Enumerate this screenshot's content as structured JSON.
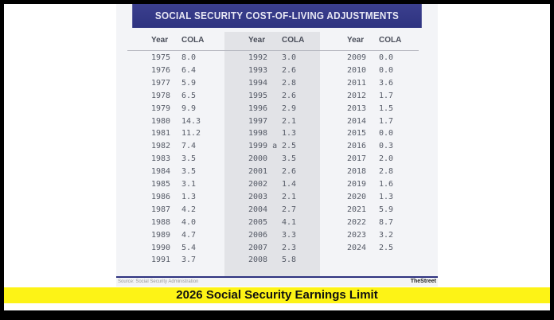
{
  "title": "SOCIAL SECURITY COST-OF-LIVING ADJUSTMENTS",
  "headers": {
    "year": "Year",
    "cola": "COLA"
  },
  "columns": [
    [
      [
        "1975",
        "8.0"
      ],
      [
        "1976",
        "6.4"
      ],
      [
        "1977",
        "5.9"
      ],
      [
        "1978",
        "6.5"
      ],
      [
        "1979",
        "9.9"
      ],
      [
        "1980",
        "14.3"
      ],
      [
        "1981",
        "11.2"
      ],
      [
        "1982",
        "7.4"
      ],
      [
        "1983",
        "3.5"
      ],
      [
        "1984",
        "3.5"
      ],
      [
        "1985",
        "3.1"
      ],
      [
        "1986",
        "1.3"
      ],
      [
        "1987",
        "4.2"
      ],
      [
        "1988",
        "4.0"
      ],
      [
        "1989",
        "4.7"
      ],
      [
        "1990",
        "5.4"
      ],
      [
        "1991",
        "3.7"
      ]
    ],
    [
      [
        "1992",
        "3.0"
      ],
      [
        "1993",
        "2.6"
      ],
      [
        "1994",
        "2.8"
      ],
      [
        "1995",
        "2.6"
      ],
      [
        "1996",
        "2.9"
      ],
      [
        "1997",
        "2.1"
      ],
      [
        "1998",
        "1.3"
      ],
      [
        "1999 a",
        "2.5"
      ],
      [
        "2000",
        "3.5"
      ],
      [
        "2001",
        "2.6"
      ],
      [
        "2002",
        "1.4"
      ],
      [
        "2003",
        "2.1"
      ],
      [
        "2004",
        "2.7"
      ],
      [
        "2005",
        "4.1"
      ],
      [
        "2006",
        "3.3"
      ],
      [
        "2007",
        "2.3"
      ],
      [
        "2008",
        "5.8"
      ]
    ],
    [
      [
        "2009",
        "0.0"
      ],
      [
        "2010",
        "0.0"
      ],
      [
        "2011",
        "3.6"
      ],
      [
        "2012",
        "1.7"
      ],
      [
        "2013",
        "1.5"
      ],
      [
        "2014",
        "1.7"
      ],
      [
        "2015",
        "0.0"
      ],
      [
        "2016",
        "0.3"
      ],
      [
        "2017",
        "2.0"
      ],
      [
        "2018",
        "2.8"
      ],
      [
        "2019",
        "1.6"
      ],
      [
        "2020",
        "1.3"
      ],
      [
        "2021",
        "5.9"
      ],
      [
        "2022",
        "8.7"
      ],
      [
        "2023",
        "3.2"
      ],
      [
        "2024",
        "2.5"
      ]
    ]
  ],
  "source": "Source: Social Security Administration",
  "logo": "TheStreet",
  "banner": "2026 Social Security Earnings Limit",
  "colors": {
    "header": "#2e3380",
    "banner": "#fdf316"
  }
}
